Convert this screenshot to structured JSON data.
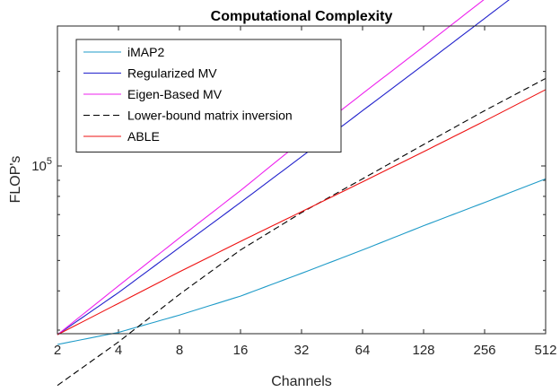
{
  "chart_data": {
    "type": "line",
    "title": "Computational Complexity",
    "xlabel": "Channels",
    "ylabel": "FLOP's",
    "x_scale": "log2",
    "y_scale": "log",
    "xlim": [
      2,
      512
    ],
    "x_ticks": [
      2,
      4,
      8,
      16,
      32,
      64,
      128,
      256,
      512
    ],
    "x_tick_labels": [
      "2",
      "4",
      "8",
      "16",
      "32",
      "64",
      "128",
      "256",
      "512"
    ],
    "y_tick_labels": [
      {
        "base": "10",
        "exponent": "5",
        "value": 100000
      }
    ],
    "grid": false,
    "legend_position": "top-left",
    "series": [
      {
        "name": "iMAP2",
        "color": "#1f9bc8",
        "dash": "solid",
        "points": [
          [
            2,
            27000
          ],
          [
            4,
            29500
          ],
          [
            8,
            33500
          ],
          [
            16,
            38500
          ],
          [
            32,
            45500
          ],
          [
            64,
            54000
          ],
          [
            128,
            64500
          ],
          [
            256,
            76500
          ],
          [
            512,
            91000
          ]
        ]
      },
      {
        "name": "Regularized MV",
        "color": "#2222cc",
        "dash": "solid",
        "points": [
          [
            2,
            29000
          ],
          [
            4,
            39500
          ],
          [
            8,
            55000
          ],
          [
            16,
            76500
          ],
          [
            32,
            107000
          ],
          [
            64,
            150000
          ],
          [
            128,
            210000
          ],
          [
            256,
            295000
          ],
          [
            512,
            415000
          ]
        ]
      },
      {
        "name": "Eigen-Based MV",
        "color": "#ee22ee",
        "dash": "solid",
        "points": [
          [
            2,
            29000
          ],
          [
            4,
            41500
          ],
          [
            8,
            59000
          ],
          [
            16,
            83500
          ],
          [
            32,
            120000
          ],
          [
            64,
            170000
          ],
          [
            128,
            240000
          ],
          [
            256,
            340000
          ],
          [
            512,
            480000
          ]
        ]
      },
      {
        "name": "Lower-bound matrix inversion",
        "color": "#000000",
        "dash": "dashed",
        "points": [
          [
            2,
            20000
          ],
          [
            4,
            27500
          ],
          [
            8,
            39000
          ],
          [
            16,
            54000
          ],
          [
            32,
            71000
          ],
          [
            64,
            91000
          ],
          [
            128,
            117000
          ],
          [
            256,
            150000
          ],
          [
            512,
            190000
          ]
        ]
      },
      {
        "name": "ABLE",
        "color": "#ee1111",
        "dash": "solid",
        "points": [
          [
            2,
            29000
          ],
          [
            4,
            36500
          ],
          [
            8,
            46000
          ],
          [
            16,
            57500
          ],
          [
            32,
            71500
          ],
          [
            64,
            89000
          ],
          [
            128,
            111000
          ],
          [
            256,
            139000
          ],
          [
            512,
            175000
          ]
        ]
      }
    ]
  }
}
